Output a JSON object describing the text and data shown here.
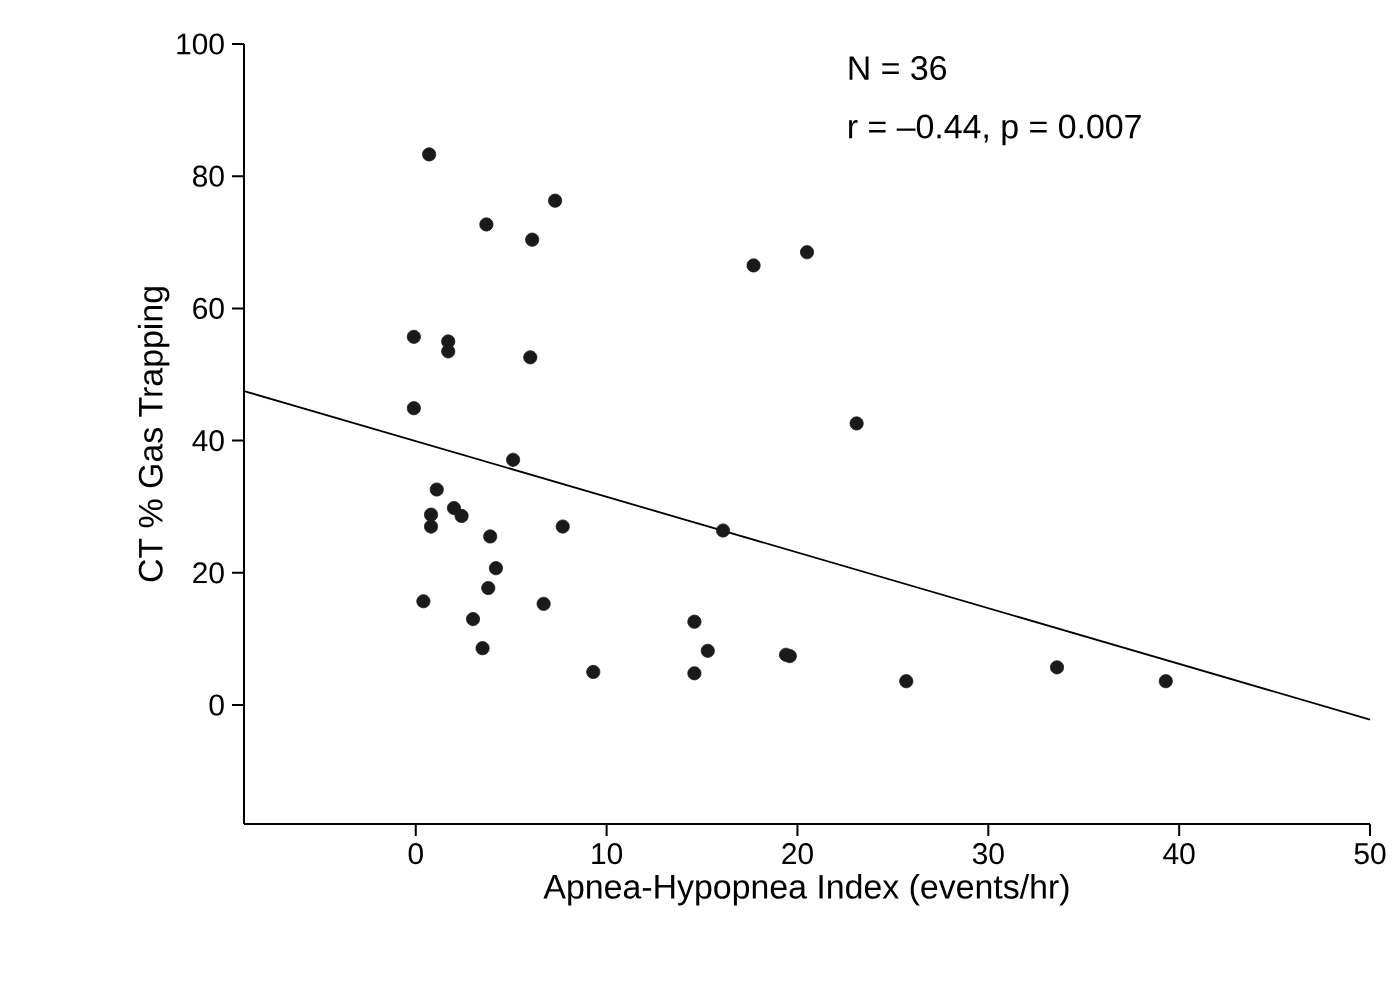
{
  "chart_data": {
    "type": "scatter",
    "xlabel": "Apnea-Hypopnea Index (events/hr)",
    "ylabel": "CT % Gas Trapping",
    "xlim": [
      -9,
      50
    ],
    "ylim": [
      -18,
      100
    ],
    "xticks": [
      0,
      10,
      20,
      30,
      40,
      50
    ],
    "yticks": [
      0,
      20,
      40,
      60,
      80,
      100
    ],
    "marker": "circle",
    "grid": false,
    "legend": false,
    "annotations": [
      "N = 36",
      "r = –0.44, p = 0.007"
    ],
    "series": [
      {
        "color": "#1a1a1a",
        "x": [
          0.7,
          7.3,
          3.7,
          6.1,
          -0.1,
          1.7,
          1.7,
          6.0,
          -0.1,
          5.1,
          1.1,
          0.8,
          0.8,
          2.0,
          2.4,
          3.9,
          7.7,
          4.2,
          3.8,
          0.4,
          6.7,
          3.0,
          3.5,
          9.3,
          17.7,
          20.5,
          23.1,
          16.1,
          14.6,
          15.3,
          14.6,
          19.4,
          19.6,
          25.7,
          33.6,
          39.3
        ],
        "values": [
          83.3,
          76.3,
          72.7,
          70.4,
          55.7,
          55.0,
          53.5,
          52.6,
          44.9,
          37.1,
          32.6,
          28.8,
          27.0,
          29.8,
          28.6,
          25.5,
          27.0,
          20.7,
          17.7,
          15.7,
          15.3,
          13.0,
          8.6,
          5.0,
          66.5,
          68.5,
          42.6,
          26.4,
          12.6,
          8.2,
          4.8,
          7.6,
          7.4,
          3.6,
          5.7,
          3.6
        ]
      },
      {
        "type": "line",
        "marker": "none",
        "color": "#000000",
        "x": [
          -9,
          50
        ],
        "values": [
          47.5,
          -2.2
        ]
      }
    ]
  }
}
